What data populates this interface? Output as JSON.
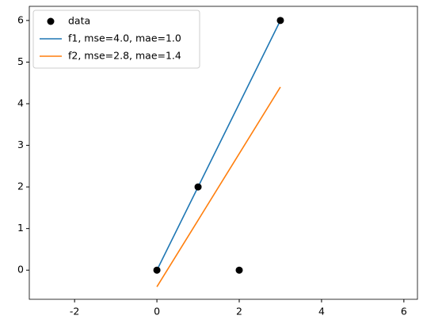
{
  "chart_data": {
    "type": "line",
    "xlim": [
      -3.1,
      6.33
    ],
    "ylim": [
      -0.7,
      6.34
    ],
    "xticks": [
      -2,
      0,
      2,
      4,
      6
    ],
    "yticks": [
      0,
      1,
      2,
      3,
      4,
      5,
      6
    ],
    "legend": "upper left",
    "series": [
      {
        "name": "data",
        "type": "scatter",
        "color": "#000000",
        "x": [
          0,
          1,
          2,
          3
        ],
        "values": [
          0,
          2,
          0,
          6
        ]
      },
      {
        "name": "f1, mse=4.0, mae=1.0",
        "type": "line",
        "color": "#1f77b4",
        "x": [
          0,
          1,
          2,
          3
        ],
        "values": [
          0,
          2,
          4,
          6
        ]
      },
      {
        "name": "f2, mse=2.8, mae=1.4",
        "type": "line",
        "color": "#ff7f0e",
        "x": [
          0,
          1,
          2,
          3
        ],
        "values": [
          -0.4,
          1.2,
          2.8,
          4.4
        ]
      }
    ]
  }
}
